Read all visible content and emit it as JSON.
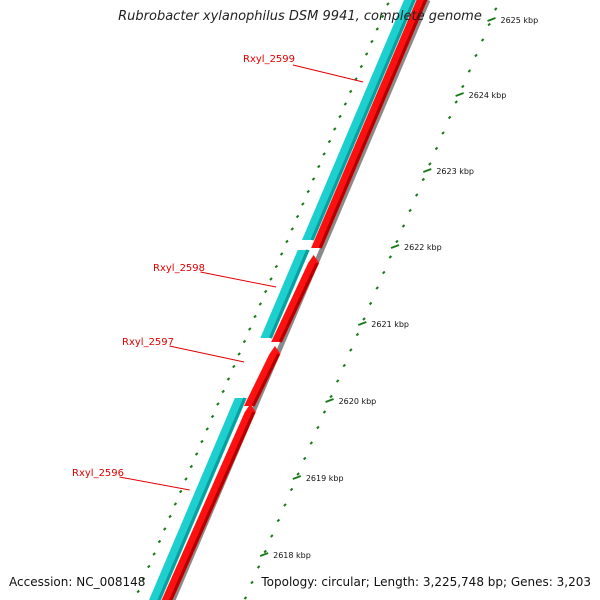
{
  "title": "Rubrobacter xylanophilus DSM 9941, complete genome",
  "footer": {
    "accession": "Accession: NC_008148",
    "summary": "Topology: circular; Length: 3,225,748 bp; Genes: 3,203"
  },
  "colors": {
    "cds_track": "#1ecfcf",
    "cds_track_dark": "#0a9e9e",
    "gene_track": "#ff1010",
    "gene_track_dark": "#b00000",
    "ruler": "#1a7a1a",
    "backbone": "#8a8a8a",
    "label": "#e00000"
  },
  "scale": {
    "ticks": [
      {
        "label": "2625 kbp"
      },
      {
        "label": "2624 kbp"
      },
      {
        "label": "2623 kbp"
      },
      {
        "label": "2622 kbp"
      },
      {
        "label": "2621 kbp"
      },
      {
        "label": "2620 kbp"
      },
      {
        "label": "2619 kbp"
      },
      {
        "label": "2618 kbp"
      }
    ]
  },
  "genes": [
    {
      "name": "Rxyl_2599"
    },
    {
      "name": "Rxyl_2598"
    },
    {
      "name": "Rxyl_2597"
    },
    {
      "name": "Rxyl_2596"
    }
  ]
}
